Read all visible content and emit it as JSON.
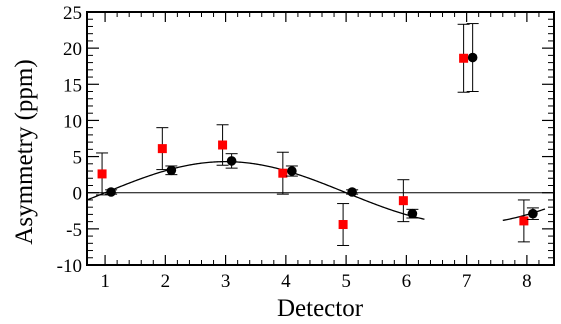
{
  "chart_data": {
    "type": "scatter",
    "xlabel": "Detector",
    "ylabel": "Asymmetry (ppm)",
    "xlim": [
      0.7,
      8.45
    ],
    "ylim": [
      -10,
      25
    ],
    "x_ticks": [
      1,
      2,
      3,
      4,
      5,
      6,
      7,
      8
    ],
    "y_ticks": [
      -10,
      -5,
      0,
      5,
      10,
      15,
      20,
      25
    ],
    "grid": false,
    "legend": "none",
    "zero_line": true,
    "series": [
      {
        "marker": "square",
        "color": "#ff0000",
        "x": [
          0.95,
          1.95,
          2.95,
          3.95,
          4.95,
          5.95,
          6.95,
          7.95
        ],
        "y": [
          2.6,
          6.1,
          6.6,
          2.7,
          -4.4,
          -1.1,
          18.6,
          -3.9
        ],
        "err": [
          2.9,
          2.9,
          2.8,
          2.9,
          2.9,
          2.9,
          4.7,
          2.9
        ]
      },
      {
        "marker": "circle",
        "color": "#000000",
        "x": [
          1.1,
          2.1,
          3.1,
          4.1,
          5.1,
          6.1,
          7.1,
          8.1
        ],
        "y": [
          0.1,
          3.1,
          4.4,
          3.0,
          0.1,
          -2.9,
          18.7,
          -2.9
        ],
        "err": [
          0.3,
          0.6,
          1.0,
          0.7,
          0.3,
          0.6,
          4.7,
          0.8
        ]
      }
    ],
    "fit": {
      "function": "A*sin(2*pi*(x-x0)/8)",
      "A": 4.3,
      "x0": 1.0,
      "segments": [
        [
          0.7,
          6.3
        ],
        [
          7.6,
          8.3
        ]
      ]
    }
  }
}
